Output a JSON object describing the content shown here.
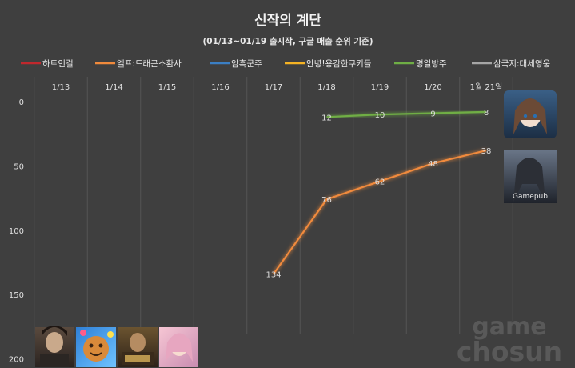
{
  "chart_data": {
    "type": "line",
    "title": "신작의 계단",
    "subtitle": "(01/13~01/19 출시작, 구글 매출 순위 기준)",
    "xlabel": "",
    "ylabel": "",
    "categories": [
      "1/13",
      "1/14",
      "1/15",
      "1/16",
      "1/17",
      "1/18",
      "1/19",
      "1/20",
      "1월 21일"
    ],
    "ylim": [
      0,
      200
    ],
    "y_inverted": true,
    "yticks": [
      0,
      50,
      100,
      150,
      200
    ],
    "grid": "vertical",
    "legend_position": "top",
    "series": [
      {
        "name": "하트인걸",
        "color": "#c0282d",
        "values": [
          null,
          null,
          null,
          null,
          null,
          null,
          null,
          null,
          null
        ]
      },
      {
        "name": "엘프:드래곤소환사",
        "color": "#f08a3c",
        "values": [
          null,
          null,
          null,
          null,
          134,
          76,
          62,
          48,
          38
        ]
      },
      {
        "name": "암흑군주",
        "color": "#3b7fc4",
        "values": [
          null,
          null,
          null,
          null,
          null,
          null,
          null,
          null,
          null
        ]
      },
      {
        "name": "안녕!용감한쿠키들",
        "color": "#f5b324",
        "values": [
          null,
          null,
          null,
          null,
          null,
          null,
          null,
          null,
          null
        ]
      },
      {
        "name": "명일방주",
        "color": "#6fae45",
        "values": [
          null,
          null,
          null,
          null,
          null,
          12,
          10,
          9,
          8
        ]
      },
      {
        "name": "삼국지:대세영웅",
        "color": "#a6a6a6",
        "values": [
          null,
          null,
          null,
          null,
          null,
          null,
          null,
          null,
          null
        ]
      }
    ]
  },
  "watermark": {
    "line1": "game",
    "line2": "chosun"
  },
  "thumbnail_icons": [
    "game-icon-three-kingdoms",
    "game-icon-cookies",
    "game-icon-dark-lord",
    "game-icon-heart-girl",
    "game-icon-arknights",
    "game-icon-elf-dragon"
  ],
  "thumbnail_caption": "Gamepub"
}
